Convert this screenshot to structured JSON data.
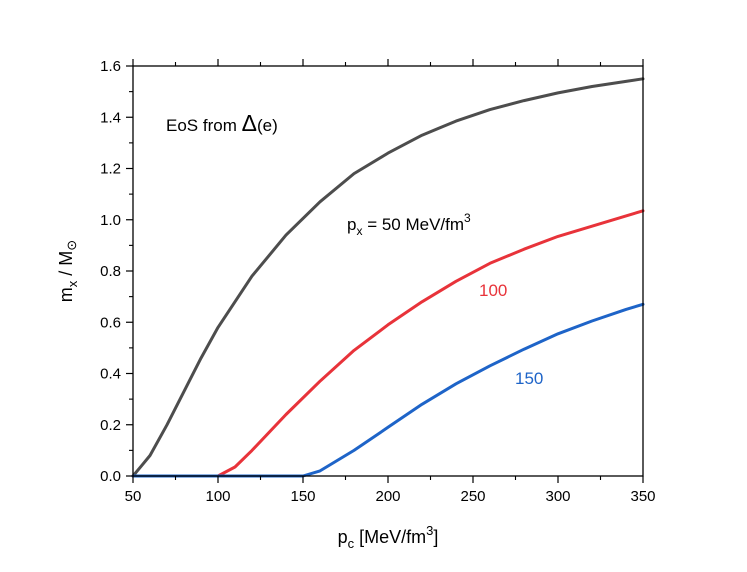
{
  "chart_data": {
    "type": "line",
    "xlabel": {
      "base": "p",
      "sub": "c",
      "rest": " [MeV/fm",
      "sup": "3",
      "close": "]"
    },
    "ylabel": {
      "base": "m",
      "sub": "x",
      "rest": " / M",
      "sun": "⊙"
    },
    "annotation": {
      "prefix": "EoS from ",
      "delta": "Δ",
      "suffix": "(e)"
    },
    "xlim": [
      50,
      350
    ],
    "ylim": [
      0,
      1.6
    ],
    "xticks": [
      50,
      100,
      150,
      200,
      250,
      300,
      350
    ],
    "yticks": [
      "0.0",
      "0.2",
      "0.4",
      "0.6",
      "0.8",
      "1.0",
      "1.2",
      "1.4",
      "1.6"
    ],
    "grid": false,
    "series": [
      {
        "label_parts": {
          "base": "p",
          "sub": "x",
          "rest": " = 50 MeV/fm",
          "sup": "3"
        },
        "color": "#4d4d4d",
        "x": [
          50,
          55,
          60,
          70,
          80,
          90,
          100,
          120,
          140,
          160,
          180,
          200,
          220,
          240,
          260,
          280,
          300,
          320,
          340,
          350
        ],
        "y": [
          0.0,
          0.04,
          0.08,
          0.2,
          0.33,
          0.46,
          0.58,
          0.78,
          0.94,
          1.07,
          1.18,
          1.26,
          1.33,
          1.385,
          1.43,
          1.465,
          1.495,
          1.52,
          1.54,
          1.55
        ]
      },
      {
        "label_parts": {
          "base": "100"
        },
        "color": "#e8333a",
        "x": [
          50,
          100,
          110,
          120,
          140,
          160,
          180,
          200,
          220,
          240,
          260,
          280,
          300,
          320,
          340,
          350
        ],
        "y": [
          0,
          0,
          0.035,
          0.1,
          0.24,
          0.37,
          0.49,
          0.59,
          0.68,
          0.76,
          0.83,
          0.885,
          0.935,
          0.975,
          1.015,
          1.035
        ]
      },
      {
        "label_parts": {
          "base": "150"
        },
        "color": "#1e64c8",
        "x": [
          50,
          150,
          160,
          170,
          180,
          200,
          220,
          240,
          260,
          280,
          300,
          320,
          340,
          350
        ],
        "y": [
          0,
          0,
          0.02,
          0.06,
          0.1,
          0.19,
          0.28,
          0.36,
          0.43,
          0.495,
          0.555,
          0.605,
          0.65,
          0.67
        ]
      }
    ]
  }
}
